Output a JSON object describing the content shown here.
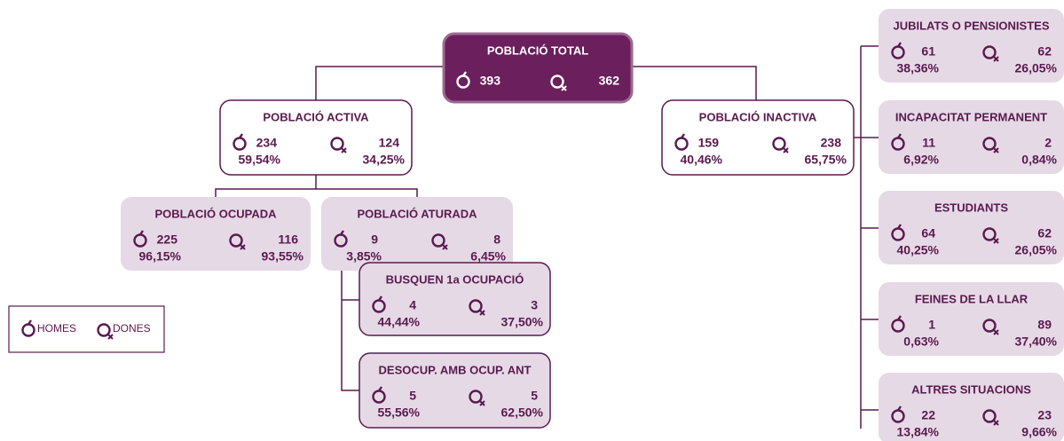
{
  "nodes": [
    {
      "title": "POBLACIÓ TOTAL",
      "men": {
        "count": 393
      },
      "women": {
        "count": 362
      }
    },
    {
      "title": "POBLACIÓ ACTIVA",
      "men": {
        "count": 234,
        "pct": "59,54%"
      },
      "women": {
        "count": 124,
        "pct": "34,25%"
      }
    },
    {
      "title": "POBLACIÓ INACTIVA",
      "men": {
        "count": 159,
        "pct": "40,46%"
      },
      "women": {
        "count": 238,
        "pct": "65,75%"
      }
    },
    {
      "title": "POBLACIÓ OCUPADA",
      "men": {
        "count": 225,
        "pct": "96,15%"
      },
      "women": {
        "count": 116,
        "pct": "93,55%"
      }
    },
    {
      "title": "POBLACIÓ ATURADA",
      "men": {
        "count": 9,
        "pct": "3,85%"
      },
      "women": {
        "count": 8,
        "pct": "6,45%"
      }
    },
    {
      "title": "BUSQUEN 1a OCUPACIÓ",
      "men": {
        "count": 4,
        "pct": "44,44%"
      },
      "women": {
        "count": 3,
        "pct": "37,50%"
      }
    },
    {
      "title": "DESOCUP. AMB OCUP. ANT",
      "men": {
        "count": 5,
        "pct": "55,56%"
      },
      "women": {
        "count": 5,
        "pct": "62,50%"
      }
    },
    {
      "title": "JUBILATS O PENSIONISTES",
      "men": {
        "count": 61,
        "pct": "38,36%"
      },
      "women": {
        "count": 62,
        "pct": "26,05%"
      }
    },
    {
      "title": "INCAPACITAT PERMANENT",
      "men": {
        "count": 11,
        "pct": "6,92%"
      },
      "women": {
        "count": 2,
        "pct": "0,84%"
      }
    },
    {
      "title": "ESTUDIANTS",
      "men": {
        "count": 64,
        "pct": "40,25%"
      },
      "women": {
        "count": 62,
        "pct": "26,05%"
      }
    },
    {
      "title": "FEINES DE LA LLAR",
      "men": {
        "count": 1,
        "pct": "0,63%"
      },
      "women": {
        "count": 89,
        "pct": "37,40%"
      }
    },
    {
      "title": "ALTRES SITUACIONS",
      "men": {
        "count": 22,
        "pct": "13,84%"
      },
      "women": {
        "count": 23,
        "pct": "9,66%"
      }
    }
  ],
  "legend": {
    "men": "HOMES",
    "women": "DONES"
  }
}
